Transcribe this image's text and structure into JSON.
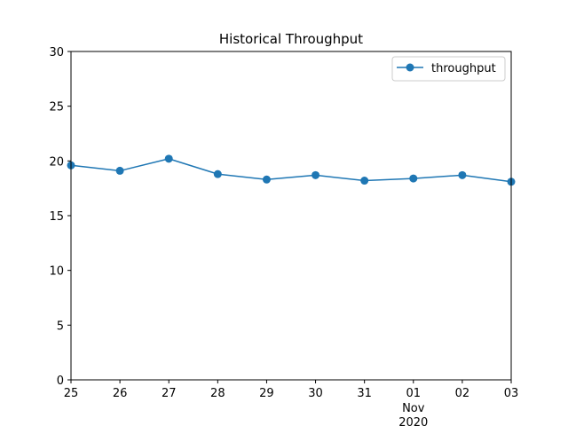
{
  "chart_data": {
    "type": "line",
    "title": "Historical Throughput",
    "xlabel": "",
    "ylabel": "",
    "x": [
      "2020-10-25",
      "2020-10-26",
      "2020-10-27",
      "2020-10-28",
      "2020-10-29",
      "2020-10-30",
      "2020-10-31",
      "2020-11-01",
      "2020-11-02",
      "2020-11-03"
    ],
    "x_tick_labels": [
      "25",
      "26",
      "27",
      "28",
      "29",
      "30",
      "31",
      "01",
      "02",
      "03"
    ],
    "x_secondary_labels": [
      "Nov",
      "2020"
    ],
    "series": [
      {
        "name": "throughput",
        "color": "#1f77b4",
        "marker": "circle",
        "values": [
          19.6,
          19.1,
          20.2,
          18.8,
          18.3,
          18.7,
          18.2,
          18.4,
          18.7,
          18.1
        ]
      }
    ],
    "ylim": [
      0,
      30
    ],
    "y_ticks": [
      0,
      5,
      10,
      15,
      20,
      25,
      30
    ],
    "y_tick_labels": [
      "0",
      "5",
      "10",
      "15",
      "20",
      "25",
      "30"
    ],
    "grid": false,
    "legend": "top-right"
  }
}
